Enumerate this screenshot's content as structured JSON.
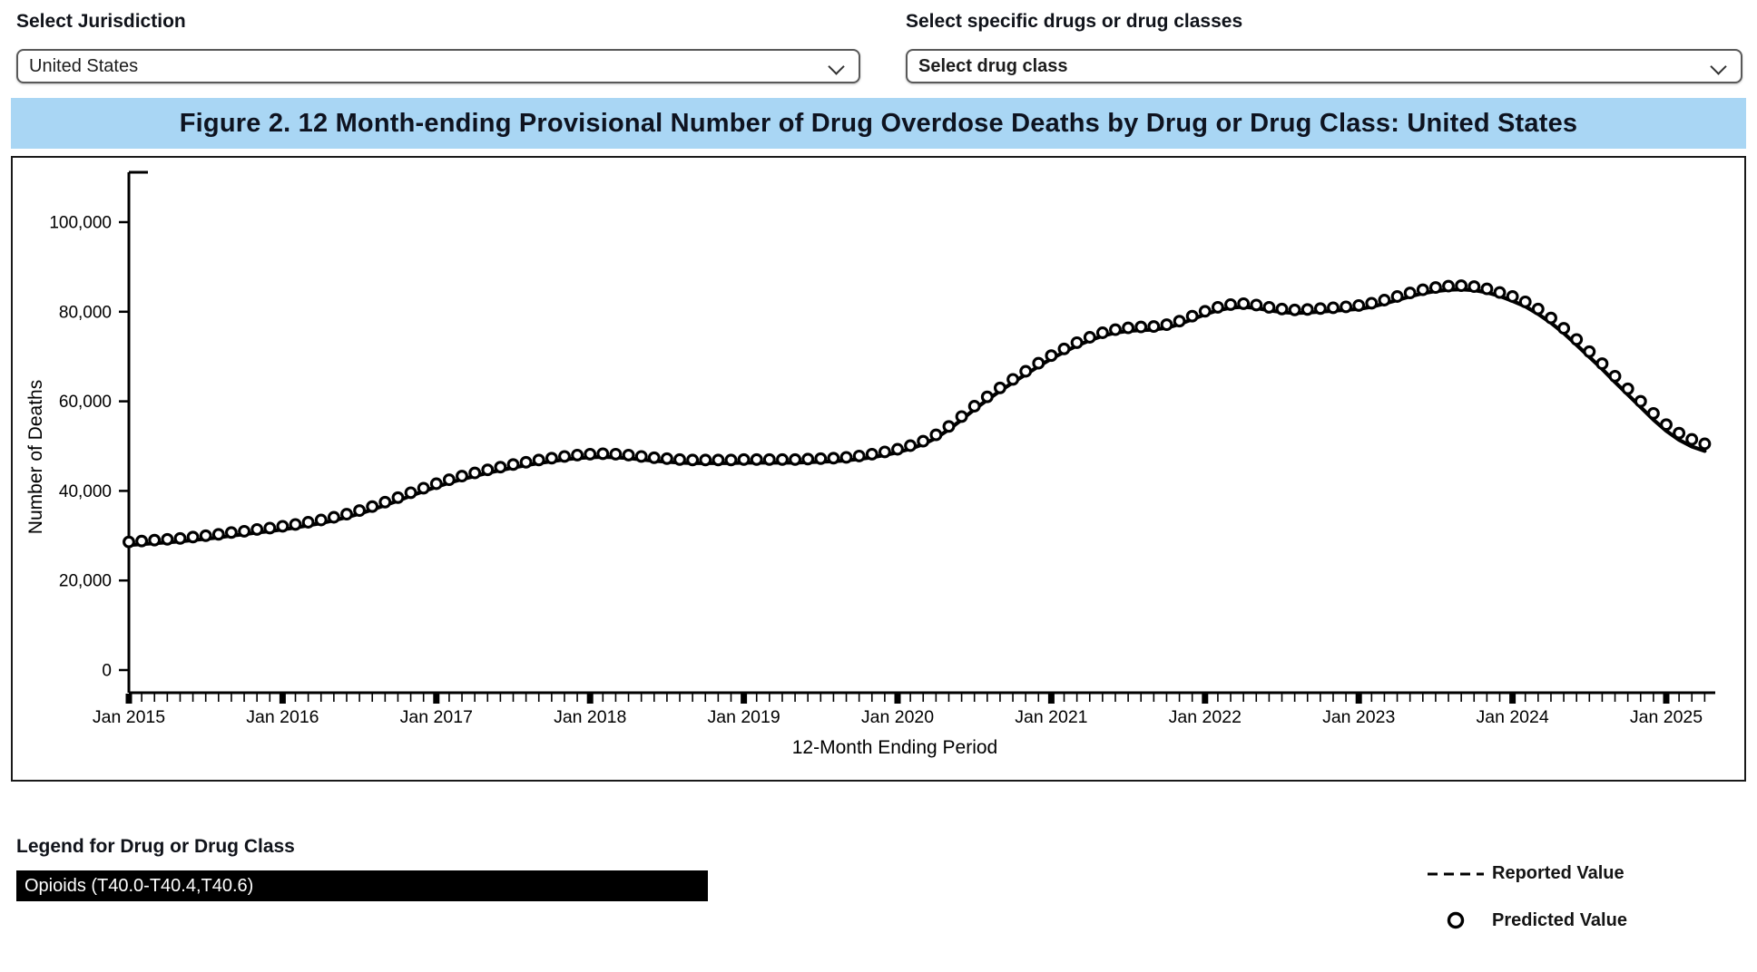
{
  "controls": {
    "jurisdiction_label": "Select Jurisdiction",
    "jurisdiction_value": "United States",
    "drug_label": "Select specific drugs or drug classes",
    "drug_value": "Select drug class"
  },
  "title": "Figure 2. 12 Month-ending Provisional Number of Drug Overdose Deaths by Drug or Drug Class: United States",
  "colors": {
    "title_bar_bg": "#a9d6f4",
    "series_color": "#000000",
    "legend_item_bg": "#000000",
    "legend_item_fg": "#ffffff"
  },
  "chart_data": {
    "type": "line",
    "title": "Figure 2. 12 Month-ending Provisional Number of Drug Overdose Deaths by Drug or Drug Class: United States",
    "xlabel": "12-Month Ending Period",
    "ylabel": "Number of Deaths",
    "x_start": "Jan 2015",
    "x_end": "Apr 2025",
    "x_interval": "monthly",
    "x_tick_labels": [
      "Jan 2015",
      "Jan 2016",
      "Jan 2017",
      "Jan 2018",
      "Jan 2019",
      "Jan 2020",
      "Jan 2021",
      "Jan 2022",
      "Jan 2023",
      "Jan 2024",
      "Jan 2025"
    ],
    "ylim": [
      0,
      110000
    ],
    "yticks": [
      0,
      20000,
      40000,
      60000,
      80000,
      100000
    ],
    "ytick_labels": [
      "0",
      "20,000",
      "40,000",
      "60,000",
      "80,000",
      "100,000"
    ],
    "grid": false,
    "legend_position": "bottom-right",
    "series": [
      {
        "name": "Reported Value",
        "style": "line",
        "color": "#000000",
        "values": [
          27900,
          28100,
          28300,
          28500,
          28700,
          29000,
          29300,
          29600,
          30000,
          30300,
          30700,
          31000,
          31400,
          31800,
          32300,
          32800,
          33400,
          34100,
          34900,
          35800,
          36800,
          37800,
          38900,
          39900,
          40900,
          41800,
          42600,
          43300,
          44000,
          44600,
          45200,
          45700,
          46200,
          46600,
          47000,
          47300,
          47500,
          47600,
          47500,
          47300,
          47000,
          46700,
          46500,
          46300,
          46200,
          46200,
          46200,
          46200,
          46300,
          46300,
          46300,
          46300,
          46300,
          46400,
          46500,
          46600,
          46800,
          47100,
          47500,
          48000,
          48600,
          49400,
          50400,
          51800,
          53700,
          55900,
          58200,
          60300,
          62300,
          64200,
          66000,
          67800,
          69500,
          71000,
          72400,
          73600,
          74600,
          75300,
          75700,
          75900,
          76000,
          76400,
          77200,
          78300,
          79400,
          80300,
          80900,
          81100,
          80800,
          80300,
          79900,
          79700,
          79800,
          80000,
          80200,
          80400,
          80600,
          81100,
          81800,
          82600,
          83400,
          84100,
          84600,
          84900,
          85000,
          84800,
          84300,
          83500,
          82400,
          81200,
          79500,
          77500,
          75200,
          72600,
          69900,
          67200,
          64300,
          61500,
          58700,
          55900,
          53400,
          51400,
          49900,
          48900
        ]
      },
      {
        "name": "Predicted Value",
        "style": "circle-markers",
        "color": "#000000",
        "values": [
          28600,
          28800,
          29000,
          29200,
          29400,
          29700,
          30000,
          30300,
          30700,
          31000,
          31400,
          31700,
          32100,
          32500,
          33000,
          33500,
          34100,
          34800,
          35600,
          36500,
          37500,
          38500,
          39600,
          40600,
          41600,
          42500,
          43300,
          44000,
          44700,
          45300,
          45900,
          46400,
          46900,
          47300,
          47700,
          48000,
          48200,
          48300,
          48200,
          48000,
          47700,
          47400,
          47200,
          47000,
          46900,
          46900,
          46900,
          46900,
          47000,
          47000,
          47000,
          47000,
          47000,
          47100,
          47200,
          47300,
          47500,
          47800,
          48200,
          48700,
          49300,
          50100,
          51100,
          52500,
          54400,
          56600,
          58900,
          61000,
          63000,
          64900,
          66700,
          68500,
          70200,
          71700,
          73100,
          74300,
          75300,
          76000,
          76400,
          76600,
          76700,
          77100,
          77900,
          79000,
          80100,
          81000,
          81600,
          81800,
          81500,
          81000,
          80600,
          80400,
          80500,
          80700,
          80900,
          81100,
          81400,
          81900,
          82600,
          83400,
          84200,
          84900,
          85400,
          85700,
          85800,
          85600,
          85100,
          84300,
          83400,
          82200,
          80600,
          78600,
          76300,
          73800,
          71100,
          68400,
          65600,
          62800,
          60000,
          57300,
          54800,
          52900,
          51500,
          50500
        ]
      }
    ]
  },
  "legend": {
    "heading": "Legend for Drug or Drug Class",
    "item_label": "Opioids (T40.0-T40.4,T40.6)",
    "reported_label": "Reported Value",
    "predicted_label": "Predicted Value"
  }
}
